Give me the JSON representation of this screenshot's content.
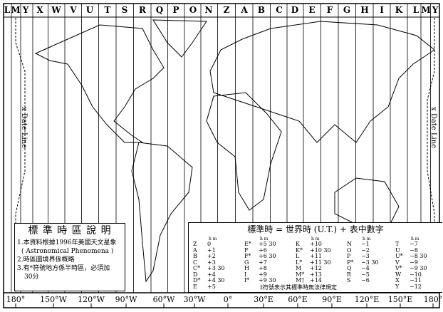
{
  "zone_letters_top": [
    "L",
    "M",
    "Y",
    "X",
    "W",
    "V",
    "U",
    "T",
    "S",
    "R",
    "Q",
    "P",
    "O",
    "N",
    "Z",
    "A",
    "B",
    "C",
    "D",
    "E",
    "F",
    "G",
    "H",
    "I",
    "K",
    "L",
    "M",
    "Y"
  ],
  "longitudes": [
    "180°",
    "150°W",
    "120°W",
    "90°W",
    "60°W",
    "30°W",
    "0°",
    "30°E",
    "60°E",
    "90°E",
    "120°E",
    "150°E",
    "180°"
  ],
  "date_line_label": "x Date Line",
  "notes": {
    "title": "標 準 時 區 說 明",
    "items": [
      "1.本資料根據1996年美國天文星象",
      "( Astronomical Phenomena )",
      "2.時區圖境界係概略",
      "3.有*符號地方係半時區，必須加",
      "30分"
    ]
  },
  "legend": {
    "title": "標準時 = 世界時 (U.T.) + 表中數字",
    "unit": "h m",
    "columns": [
      [
        [
          "Z",
          "0"
        ],
        [
          "A",
          "+1"
        ],
        [
          "B",
          "+2"
        ],
        [
          "C",
          "+3"
        ],
        [
          "C*",
          "+3 30"
        ],
        [
          "D",
          "+4"
        ],
        [
          "D*",
          "+4 30"
        ],
        [
          "E",
          "+5"
        ]
      ],
      [
        [
          "E*",
          "+5 30"
        ],
        [
          "F",
          "+6"
        ],
        [
          "F*",
          "+6 30"
        ],
        [
          "G",
          "+7"
        ],
        [
          "H",
          "+8"
        ],
        [
          "I",
          "+9"
        ],
        [
          "I*",
          "+9 30"
        ]
      ],
      [
        [
          "K",
          "+10"
        ],
        [
          "K*",
          "+10 30"
        ],
        [
          "L",
          "+11"
        ],
        [
          "L*",
          "+11 30"
        ],
        [
          "M",
          "+12"
        ],
        [
          "M*",
          "+13"
        ],
        [
          "M†",
          "+14"
        ]
      ],
      [
        [
          "N",
          "−1"
        ],
        [
          "O",
          "−2"
        ],
        [
          "P",
          "−3"
        ],
        [
          "P*",
          "−3 30"
        ],
        [
          "Q",
          "−4"
        ],
        [
          "R",
          "−5"
        ],
        [
          "S",
          "−6"
        ]
      ],
      [
        [
          "T",
          "−7"
        ],
        [
          "U",
          "−8"
        ],
        [
          "U*",
          "−8 30"
        ],
        [
          "V",
          "−9"
        ],
        [
          "V*",
          "−9 30"
        ],
        [
          "W",
          "−10"
        ],
        [
          "X",
          "−11"
        ],
        [
          "Y",
          "−12"
        ]
      ]
    ],
    "footnote": "‡符號表示其標準時無法律規定"
  }
}
